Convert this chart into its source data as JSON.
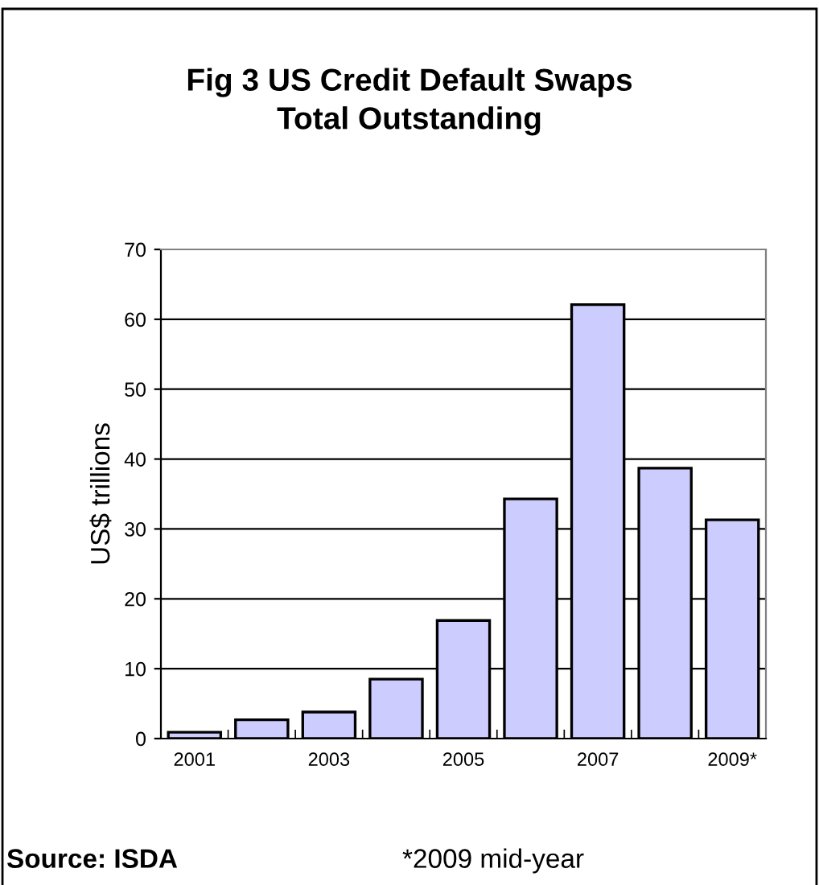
{
  "chart_data": {
    "type": "bar",
    "title": "Fig 3 US Credit Default Swaps\nTotal Outstanding",
    "ylabel": "US$ trillions",
    "categories": [
      "2001",
      null,
      "2003",
      null,
      "2005",
      null,
      "2007",
      null,
      "2009*"
    ],
    "values": [
      0.9,
      2.7,
      3.8,
      8.5,
      16.9,
      34.3,
      62.1,
      38.7,
      31.3
    ],
    "color": "#ccccff",
    "ylim": [
      0,
      70
    ],
    "yticks": [
      0,
      10,
      20,
      30,
      40,
      50,
      60,
      70
    ],
    "grid": "y",
    "annotations": [
      "Source: ISDA",
      "*2009 mid-year"
    ]
  }
}
